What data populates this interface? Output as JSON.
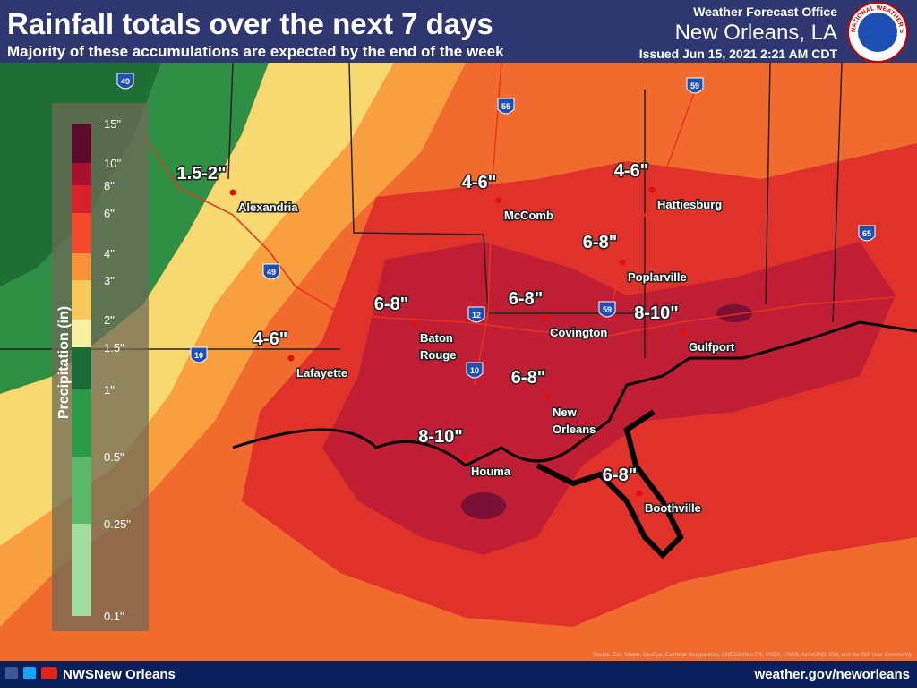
{
  "header": {
    "title": "Rainfall totals over the next 7 days",
    "subtitle": "Majority of these accumulations are expected by the end of the week",
    "office": "Weather Forecast Office",
    "location": "New Orleans, LA",
    "issued": "Issued Jun 15, 2021 2:21 AM CDT",
    "logo_text": "NATIONAL WEATHER SERVICE"
  },
  "legend": {
    "title": "Precipitation (in)",
    "labels": [
      "15\"",
      "10\"",
      "8\"",
      "6\"",
      "4\"",
      "3\"",
      "2\"",
      "1.5\"",
      "1\"",
      "0.5\"",
      "0.25\"",
      "0.1\""
    ]
  },
  "cities": [
    {
      "name_lines": [
        "Alexandria"
      ],
      "amount": "1.5-2\""
    },
    {
      "name_lines": [
        "McComb"
      ],
      "amount": "4-6\""
    },
    {
      "name_lines": [
        "Hattiesburg"
      ],
      "amount": "4-6\""
    },
    {
      "name_lines": [
        "Poplarville"
      ],
      "amount": "6-8\""
    },
    {
      "name_lines": [
        "Baton",
        "Rouge"
      ],
      "amount": "6-8\""
    },
    {
      "name_lines": [
        "Covington"
      ],
      "amount": "6-8\""
    },
    {
      "name_lines": [
        "Gulfport"
      ],
      "amount": "8-10\""
    },
    {
      "name_lines": [
        "Lafayette"
      ],
      "amount": "4-6\""
    },
    {
      "name_lines": [
        "New",
        "Orleans"
      ],
      "amount": "6-8\""
    },
    {
      "name_lines": [
        "Houma"
      ],
      "amount": "8-10\""
    },
    {
      "name_lines": [
        "Boothville"
      ],
      "amount": "6-8\""
    }
  ],
  "interstates": [
    "49",
    "55",
    "59",
    "49",
    "12",
    "59",
    "10",
    "10",
    "65"
  ],
  "source": "Source: Esri, Maxar, GeoEye, Earthstar Geographics, CNES/Airbus DS, USDA, USGS, AeroGRID, IGN, and the GIS User Community",
  "footer": {
    "handle": "NWSNew Orleans",
    "url": "weather.gov/neworleans"
  }
}
